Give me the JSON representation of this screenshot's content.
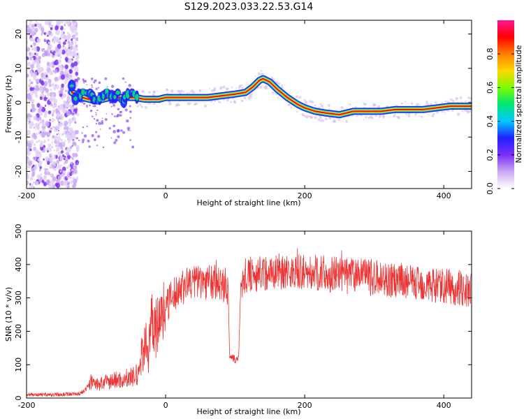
{
  "title": "S129.2023.033.22.53.G14",
  "colors": {
    "snr_line": "#ee3333",
    "colormap": [
      "#ffffff",
      "#c9a8f2",
      "#7b2ff7",
      "#2020ff",
      "#00c8ff",
      "#00e676",
      "#7cfc00",
      "#ffd700",
      "#ff7f00",
      "#ff0000",
      "#ff1493"
    ]
  },
  "chart_data": [
    {
      "type": "heatmap",
      "xlabel": "Height of straight line (km)",
      "ylabel": "Frequency (Hz)",
      "xlim": [
        -200,
        440
      ],
      "ylim": [
        -25,
        24
      ],
      "xticks": [
        -200,
        0,
        200,
        400
      ],
      "yticks": [
        -20,
        -10,
        0,
        10,
        20
      ],
      "ridge": {
        "x": [
          -135,
          -120,
          -100,
          -80,
          -60,
          -45,
          -30,
          -10,
          0,
          20,
          40,
          60,
          80,
          100,
          115,
          125,
          135,
          140,
          150,
          160,
          175,
          190,
          200,
          215,
          230,
          250,
          270,
          290,
          310,
          330,
          350,
          370,
          390,
          410,
          440
        ],
        "y": [
          3,
          1.5,
          0.5,
          1.5,
          1.5,
          1.5,
          1,
          1,
          1.5,
          1.5,
          1.5,
          1.5,
          2,
          2.5,
          3,
          4.5,
          6.5,
          7,
          6,
          4,
          1.5,
          -0.5,
          -1.5,
          -2.5,
          -3,
          -3.5,
          -2.5,
          -2.5,
          -2.5,
          -2,
          -2,
          -2,
          -1.5,
          -1,
          -1
        ]
      },
      "noise_region_x": [
        -200,
        -130
      ],
      "colorbar": {
        "label": "Normalized spectral amplitude",
        "ticks": [
          0.0,
          0.2,
          0.4,
          0.6,
          0.8
        ],
        "range": [
          0,
          1
        ]
      }
    },
    {
      "type": "line",
      "xlabel": "Height of straight line (km)",
      "ylabel": "SNR (10 * v/v)",
      "xlim": [
        -200,
        440
      ],
      "ylim": [
        0,
        500
      ],
      "xticks": [
        -200,
        0,
        200,
        400
      ],
      "yticks": [
        0,
        100,
        200,
        300,
        400,
        500
      ],
      "series": [
        {
          "x": [
            -200,
            -180,
            -160,
            -140,
            -125,
            -115,
            -108,
            -100,
            -90,
            -80,
            -70,
            -60,
            -50,
            -40,
            -35,
            -30,
            -25,
            -20,
            -15,
            -10,
            0,
            10,
            20,
            30,
            40,
            60,
            80,
            90,
            92,
            95,
            100,
            105,
            108,
            112,
            120,
            140,
            160,
            180,
            200,
            220,
            240,
            260,
            280,
            300,
            320,
            340,
            360,
            380,
            400,
            420,
            440
          ],
          "y": [
            10,
            10,
            10,
            12,
            12,
            25,
            50,
            40,
            45,
            50,
            55,
            55,
            60,
            70,
            120,
            180,
            120,
            250,
            200,
            230,
            280,
            300,
            330,
            340,
            350,
            350,
            345,
            330,
            130,
            120,
            115,
            120,
            340,
            360,
            370,
            375,
            380,
            380,
            375,
            375,
            370,
            365,
            365,
            360,
            355,
            350,
            345,
            340,
            335,
            330,
            320
          ]
        }
      ]
    }
  ]
}
